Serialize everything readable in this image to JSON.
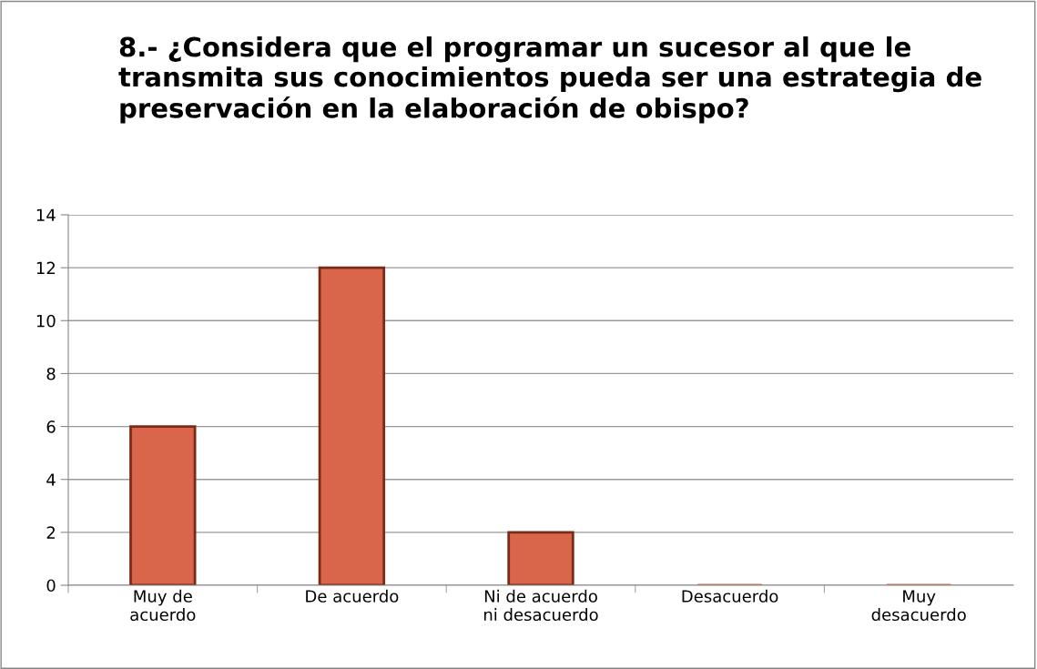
{
  "chart_data": {
    "type": "bar",
    "title": "8.- ¿Considera que el programar un sucesor al que le transmita sus conocimientos pueda ser una estrategia de preservación en la elaboración de obispo?",
    "categories": [
      "Muy de\nacuerdo",
      "De acuerdo",
      "Ni de acuerdo\nni desacuerdo",
      "Desacuerdo",
      "Muy\ndesacuerdo"
    ],
    "values": [
      6,
      12,
      2,
      0,
      0
    ],
    "color": "#d9664a",
    "ylim": [
      0,
      14
    ],
    "yticks": [
      0,
      2,
      4,
      6,
      8,
      10,
      12,
      14
    ],
    "grid": "y",
    "legend": false
  }
}
